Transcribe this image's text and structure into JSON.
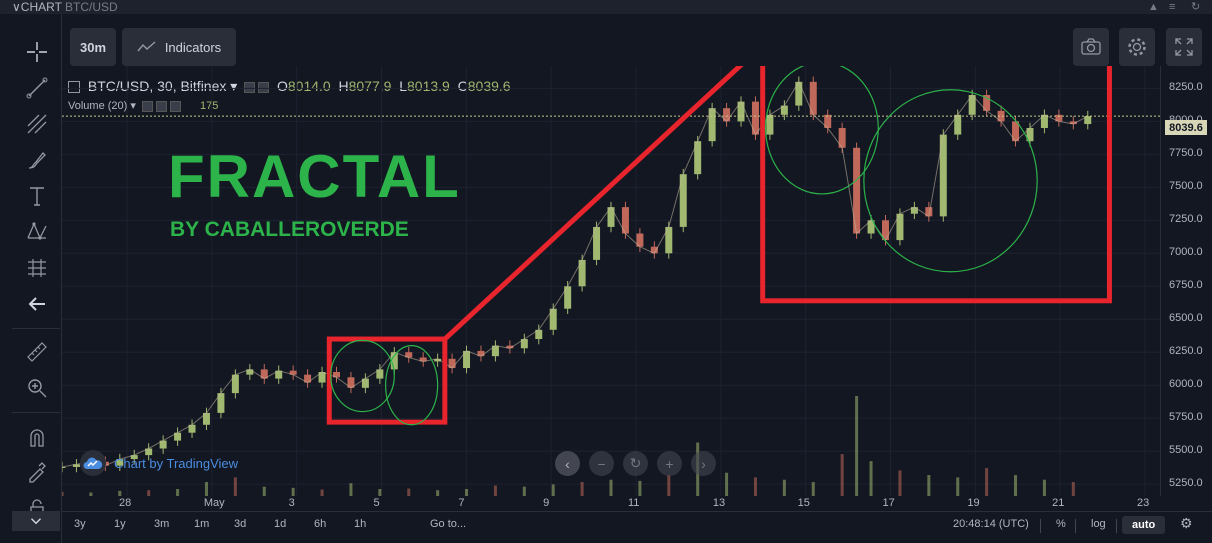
{
  "header": {
    "label": "CHART",
    "symbol": "BTC/USD"
  },
  "toolbar": {
    "interval": "30m",
    "indicators": "Indicators"
  },
  "legend": {
    "symbol": "BTC/USD, 30, Bitfinex",
    "o_label": "O",
    "o": "8014.0",
    "h_label": "H",
    "h": "8077.9",
    "l_label": "L",
    "l": "8013.9",
    "c_label": "C",
    "c": "8039.6",
    "volume_label": "Volume (20)",
    "volume_value": "175"
  },
  "overlay": {
    "title": "FRACTAL",
    "byline": "BY CABALLEROVERDE"
  },
  "watermark": "Chart by TradingView",
  "chart_data": {
    "type": "line",
    "series": [
      {
        "values": [
          [
            0,
            5380
          ],
          [
            1,
            5400
          ],
          [
            2,
            5420
          ],
          [
            3,
            5390
          ],
          [
            4,
            5440
          ],
          [
            5,
            5470
          ],
          [
            6,
            5520
          ],
          [
            7,
            5580
          ],
          [
            8,
            5640
          ],
          [
            9,
            5700
          ],
          [
            10,
            5790
          ],
          [
            11,
            5940
          ],
          [
            12,
            6080
          ],
          [
            13,
            6120
          ],
          [
            14,
            6050
          ],
          [
            15,
            6110
          ],
          [
            16,
            6080
          ],
          [
            17,
            6020
          ],
          [
            18,
            6100
          ],
          [
            19,
            6060
          ],
          [
            20,
            5980
          ],
          [
            21,
            6050
          ],
          [
            22,
            6120
          ],
          [
            23,
            6250
          ],
          [
            24,
            6210
          ],
          [
            25,
            6180
          ],
          [
            26,
            6200
          ],
          [
            27,
            6130
          ],
          [
            28,
            6260
          ],
          [
            29,
            6220
          ],
          [
            30,
            6300
          ],
          [
            31,
            6280
          ],
          [
            32,
            6350
          ],
          [
            33,
            6420
          ],
          [
            34,
            6580
          ],
          [
            35,
            6750
          ],
          [
            36,
            6950
          ],
          [
            37,
            7200
          ],
          [
            38,
            7350
          ],
          [
            39,
            7150
          ],
          [
            40,
            7050
          ],
          [
            41,
            7000
          ],
          [
            42,
            7200
          ],
          [
            43,
            7600
          ],
          [
            44,
            7850
          ],
          [
            45,
            8100
          ],
          [
            46,
            8000
          ],
          [
            47,
            8150
          ],
          [
            48,
            7900
          ],
          [
            49,
            8050
          ],
          [
            50,
            8120
          ],
          [
            51,
            8300
          ],
          [
            52,
            8050
          ],
          [
            53,
            7950
          ],
          [
            54,
            7800
          ],
          [
            55,
            7150
          ],
          [
            56,
            7250
          ],
          [
            57,
            7100
          ],
          [
            58,
            7300
          ],
          [
            59,
            7350
          ],
          [
            60,
            7280
          ],
          [
            61,
            7900
          ],
          [
            62,
            8050
          ],
          [
            63,
            8200
          ],
          [
            64,
            8080
          ],
          [
            65,
            8000
          ],
          [
            66,
            7850
          ],
          [
            67,
            7950
          ],
          [
            68,
            8050
          ],
          [
            69,
            8000
          ],
          [
            70,
            7980
          ],
          [
            71,
            8040
          ]
        ]
      },
      {
        "name": "Volume (20)",
        "values": [
          [
            0,
            18
          ],
          [
            2,
            15
          ],
          [
            4,
            22
          ],
          [
            6,
            25
          ],
          [
            8,
            30
          ],
          [
            10,
            60
          ],
          [
            12,
            80
          ],
          [
            14,
            40
          ],
          [
            16,
            35
          ],
          [
            18,
            28
          ],
          [
            20,
            55
          ],
          [
            22,
            30
          ],
          [
            24,
            32
          ],
          [
            26,
            25
          ],
          [
            28,
            30
          ],
          [
            30,
            45
          ],
          [
            32,
            40
          ],
          [
            34,
            50
          ],
          [
            36,
            60
          ],
          [
            38,
            70
          ],
          [
            40,
            65
          ],
          [
            42,
            90
          ],
          [
            44,
            230
          ],
          [
            46,
            100
          ],
          [
            48,
            80
          ],
          [
            50,
            70
          ],
          [
            52,
            60
          ],
          [
            54,
            180
          ],
          [
            55,
            430
          ],
          [
            56,
            150
          ],
          [
            58,
            110
          ],
          [
            60,
            90
          ],
          [
            62,
            80
          ],
          [
            64,
            120
          ],
          [
            66,
            90
          ],
          [
            68,
            70
          ],
          [
            70,
            60
          ]
        ]
      }
    ],
    "xlabels": [
      "28",
      "May",
      "3",
      "5",
      "7",
      "9",
      "11",
      "13",
      "15",
      "17",
      "19",
      "21",
      "23"
    ],
    "yticks": [
      "8250.0",
      "8000.0",
      "7750.0",
      "7500.0",
      "7250.0",
      "7000.0",
      "6750.0",
      "6500.0",
      "6250.0",
      "6000.0",
      "5750.0",
      "5500.0",
      "5250.0"
    ],
    "ylim": [
      5160,
      8420
    ],
    "current_price": "8039.6",
    "up_color": "#a0b870",
    "down_color": "#c0695a",
    "annotation_color": "#e8242c",
    "circle_color": "#2cb34a"
  },
  "bottom": {
    "ranges": [
      "3y",
      "1y",
      "3m",
      "1m",
      "3d",
      "1d",
      "6h",
      "1h"
    ],
    "goto": "Go to...",
    "time": "20:48:14 (UTC)",
    "pct": "%",
    "log": "log",
    "auto": "auto"
  }
}
